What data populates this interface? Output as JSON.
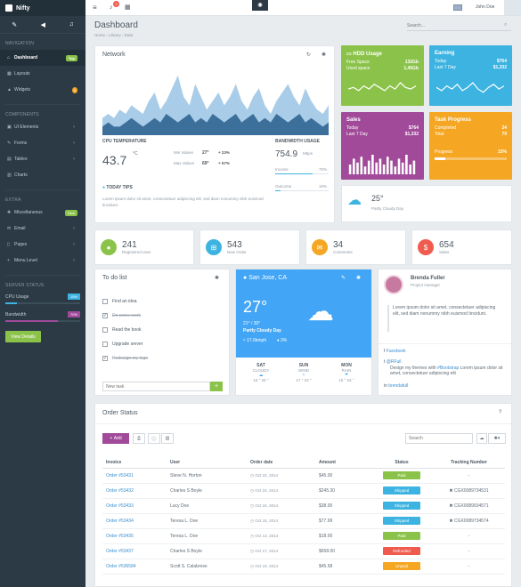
{
  "brand": "Nifty",
  "colors": {
    "sidebar": "#2b3a45",
    "green": "#8bc34a",
    "blue": "#3cb3e0",
    "purple": "#a14a9a",
    "orange": "#f5a623"
  },
  "quick_icons": [
    "magic-icon",
    "megaphone-icon",
    "bell-icon"
  ],
  "sidebar": {
    "navigation_label": "NAVIGATION",
    "items": [
      {
        "label": "Dashboard",
        "badge": "Top",
        "icon": "home-icon"
      },
      {
        "label": "Layouts",
        "icon": "grid-icon"
      },
      {
        "label": "Widgets",
        "badge": "9",
        "icon": "flask-icon"
      }
    ],
    "components_label": "COMPONENTS",
    "components": [
      {
        "label": "UI Elements",
        "icon": "briefcase-icon"
      },
      {
        "label": "Forms",
        "icon": "edit-icon"
      },
      {
        "label": "Tables",
        "icon": "table-icon"
      },
      {
        "label": "Charts",
        "icon": "chart-icon"
      }
    ],
    "extra_label": "EXTRA",
    "extra": [
      {
        "label": "Miscellaneous",
        "badge": "New",
        "icon": "plug-icon"
      },
      {
        "label": "Email",
        "icon": "envelope-icon"
      },
      {
        "label": "Pages",
        "icon": "file-icon"
      },
      {
        "label": "Menu Level",
        "icon": "plus-icon"
      }
    ],
    "server_label": "SERVER STATUS",
    "cpu_label": "CPU Usage",
    "cpu_value": "15%",
    "cpu_pct": 15,
    "bandwidth_label": "Bandwidth",
    "bandwidth_value": "70%",
    "bandwidth_pct": 70,
    "view_details": "View Details"
  },
  "topbar": {
    "notif_count": "9",
    "user": "John Doe"
  },
  "page": {
    "title": "Dashboard",
    "search_placeholder": "Search...",
    "breadcrumb": [
      "Home",
      "Library",
      "Data"
    ]
  },
  "network": {
    "title": "Network",
    "cpu_title": "CPU TEMPERATURE",
    "cpu_value": "43.7",
    "cpu_unit": "°C",
    "min_label": "Min Values",
    "min_value": "27°",
    "min_change": "+ 23%",
    "max_label": "Max Values",
    "max_value": "69°",
    "max_change": "+ 57%",
    "bw_title": "BANDWIDTH USAGE",
    "bw_value": "754.9",
    "bw_unit": "Mbps",
    "income_label": "Income",
    "income_value": "70%",
    "income_pct": 70,
    "outcome_label": "Outcome",
    "outcome_value": "10%",
    "outcome_pct": 10,
    "tips_title": "TODAY TIPS",
    "tips_text": "Lorem ipsum dolor sit amet, consectetuer adipiscing elit, sed diam nonummy nibh euismod tincidunt.",
    "area_light": [
      4,
      5,
      4,
      6,
      5,
      7,
      6,
      5,
      8,
      10,
      6,
      8,
      11,
      14,
      9,
      7,
      12,
      9,
      6,
      8,
      10,
      7,
      9,
      12,
      8,
      6,
      9,
      11,
      7,
      5,
      8,
      10,
      12,
      9,
      7,
      11,
      8,
      6,
      5,
      7
    ],
    "area_dark": [
      2,
      3,
      2,
      2,
      3,
      4,
      3,
      2,
      3,
      4,
      3,
      5,
      4,
      3,
      4,
      5,
      3,
      4,
      3,
      5,
      4,
      3,
      4,
      5,
      3,
      4,
      5,
      3,
      4,
      3,
      5,
      4,
      3,
      4,
      5,
      3,
      4,
      3,
      2,
      3
    ]
  },
  "hdd": {
    "title": "HDD Usage",
    "r1_label": "Free Space",
    "r1_value": "132Gb",
    "r2_label": "Used space",
    "r2_value": "1,45Gb",
    "spark": [
      5,
      6,
      4,
      7,
      5,
      8,
      6,
      4,
      7,
      5,
      9,
      6,
      5,
      7
    ]
  },
  "earning": {
    "title": "Earning",
    "r1_label": "Today",
    "r1_value": "$764",
    "r2_label": "Last 7 Day",
    "r2_value": "$1,332",
    "spark": [
      6,
      4,
      7,
      5,
      8,
      4,
      6,
      9,
      5,
      3,
      6,
      8,
      5,
      7
    ]
  },
  "sales": {
    "title": "Sales",
    "r1_label": "Today",
    "r1_value": "$764",
    "r2_label": "Last 7 Day",
    "r2_value": "$1,332",
    "bars": [
      5,
      8,
      6,
      9,
      4,
      7,
      10,
      6,
      8,
      5,
      9,
      7,
      4,
      8,
      6,
      10,
      5,
      7
    ]
  },
  "task": {
    "title": "Task Progress",
    "r1_label": "Completed",
    "r1_value": "34",
    "r2_label": "Total",
    "r2_value": "79",
    "progress_label": "Progress",
    "progress_value": "15%",
    "progress_pct": 15
  },
  "weather_small": {
    "temp": "25°",
    "desc": "Partly Cloudy Day"
  },
  "stats": [
    {
      "value": "241",
      "label": "Registered User",
      "color": "#8bc34a",
      "icon": "user-icon"
    },
    {
      "value": "543",
      "label": "New Order",
      "color": "#3cb3e0",
      "icon": "cart-icon"
    },
    {
      "value": "34",
      "label": "Comments",
      "color": "#f5a623",
      "icon": "comment-icon"
    },
    {
      "value": "654",
      "label": "Sales",
      "color": "#f05b4f",
      "icon": "dollar-icon"
    }
  ],
  "todo": {
    "title": "To do list",
    "items": [
      {
        "text": "Find an idea",
        "done": false
      },
      {
        "text": "Do some work",
        "done": true
      },
      {
        "text": "Read the book",
        "done": false
      },
      {
        "text": "Upgrade server",
        "done": false
      },
      {
        "text": "Redesign my logo",
        "done": true
      }
    ],
    "placeholder": "New task"
  },
  "weather": {
    "city": "San Jose, CA",
    "temp": "27°",
    "range": "21° / 30°",
    "desc": "Partly Cloudy Day",
    "wind": "17.6kmph",
    "humidity": "3%",
    "days": [
      {
        "day": "SAT",
        "cond": "CLOUDY",
        "temp": "16 ° 25 °"
      },
      {
        "day": "SUN",
        "cond": "WIND",
        "temp": "17 ° 23 °"
      },
      {
        "day": "MON",
        "cond": "RAIN",
        "temp": "15 ° 24 °"
      }
    ]
  },
  "profile": {
    "name": "Brenda Fuller",
    "role": "Project manager",
    "quote": "Lorem ipsum dolor sit amet, consectetuer adipiscing elit, sed diam nonummy nibh euismod tincidunt.",
    "facebook": "Facebook",
    "twitter": "@RFuil",
    "tweet_pre": "Design my themes with ",
    "tweet_tag": "#Bootstrap",
    "tweet_post": " Lorem ipsum dolor sit amet, consectetuer adipiscing elit",
    "linkedin": "brendafull"
  },
  "orders": {
    "title": "Order Status",
    "add": "Add",
    "search_placeholder": "Search",
    "columns": [
      "Invoice",
      "User",
      "Order date",
      "Amount",
      "Status",
      "Tracking Number"
    ],
    "rows": [
      {
        "invoice": "Order #53431",
        "user": "Steve N. Horton",
        "date": "Oct 22, 2014",
        "amount": "$45.00",
        "status": "Paid",
        "color": "#8bc34a",
        "track": "-"
      },
      {
        "invoice": "Order #53432",
        "user": "Charles S Boyle",
        "date": "Oct 24, 2014",
        "amount": "$245.30",
        "status": "Shipped",
        "color": "#3cb3e0",
        "track": "CGX0089734531"
      },
      {
        "invoice": "Order #53433",
        "user": "Lucy Doe",
        "date": "Oct 24, 2014",
        "amount": "$38.00",
        "status": "Shipped",
        "color": "#3cb3e0",
        "track": "CGX0089934571"
      },
      {
        "invoice": "Order #53434",
        "user": "Teresa L. Doe",
        "date": "Oct 15, 2014",
        "amount": "$77.99",
        "status": "Shipped",
        "color": "#3cb3e0",
        "track": "CGX0089734574"
      },
      {
        "invoice": "Order #53435",
        "user": "Teresa L. Doe",
        "date": "Oct 13, 2014",
        "amount": "$18.00",
        "status": "Paid",
        "color": "#8bc34a",
        "track": "-"
      },
      {
        "invoice": "Order #53437",
        "user": "Charles S Boyle",
        "date": "Oct 17, 2014",
        "amount": "$658.00",
        "status": "Refunded",
        "color": "#f05b4f",
        "track": "-"
      },
      {
        "invoice": "Order #536584",
        "user": "Scott S. Calabrese",
        "date": "Oct 19, 2014",
        "amount": "$45.58",
        "status": "Unpaid",
        "color": "#f5a623",
        "track": "-"
      }
    ]
  }
}
